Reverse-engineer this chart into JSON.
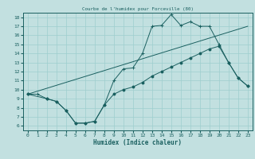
{
  "title": "Courbe de l'humidex pour Forceville (80)",
  "xlabel": "Humidex (Indice chaleur)",
  "bg_color": "#c2e0e0",
  "grid_color": "#9ecece",
  "line_color": "#1a6060",
  "xlim": [
    -0.5,
    23.5
  ],
  "ylim": [
    5.5,
    18.5
  ],
  "yticks": [
    6,
    7,
    8,
    9,
    10,
    11,
    12,
    13,
    14,
    15,
    16,
    17,
    18
  ],
  "xticks": [
    0,
    1,
    2,
    3,
    4,
    5,
    6,
    7,
    8,
    9,
    10,
    11,
    12,
    13,
    14,
    15,
    16,
    17,
    18,
    19,
    20,
    21,
    22,
    23
  ],
  "line1_x": [
    0,
    1,
    2,
    3,
    4,
    5,
    6,
    7,
    8,
    9,
    10,
    11,
    12,
    13,
    14,
    15,
    16,
    17,
    18,
    19,
    20,
    21,
    22,
    23
  ],
  "line1_y": [
    9.5,
    9.5,
    9.0,
    8.7,
    7.7,
    6.3,
    6.3,
    6.5,
    8.3,
    11.0,
    12.3,
    12.4,
    14.0,
    17.0,
    17.1,
    18.3,
    17.1,
    17.5,
    17.0,
    17.0,
    15.0,
    13.0,
    11.3,
    10.4
  ],
  "line2_x": [
    0,
    23
  ],
  "line2_y": [
    9.5,
    17.0
  ],
  "line3_x": [
    0,
    2,
    3,
    4,
    5,
    6,
    7,
    8,
    9,
    10,
    11,
    12,
    13,
    14,
    15,
    16,
    17,
    18,
    19,
    20,
    21,
    22,
    23
  ],
  "line3_y": [
    9.5,
    9.0,
    8.7,
    7.7,
    6.3,
    6.3,
    6.5,
    8.3,
    9.5,
    10.0,
    10.3,
    10.8,
    11.5,
    12.0,
    12.5,
    13.0,
    13.5,
    14.0,
    14.5,
    14.8,
    13.0,
    11.3,
    10.4
  ]
}
